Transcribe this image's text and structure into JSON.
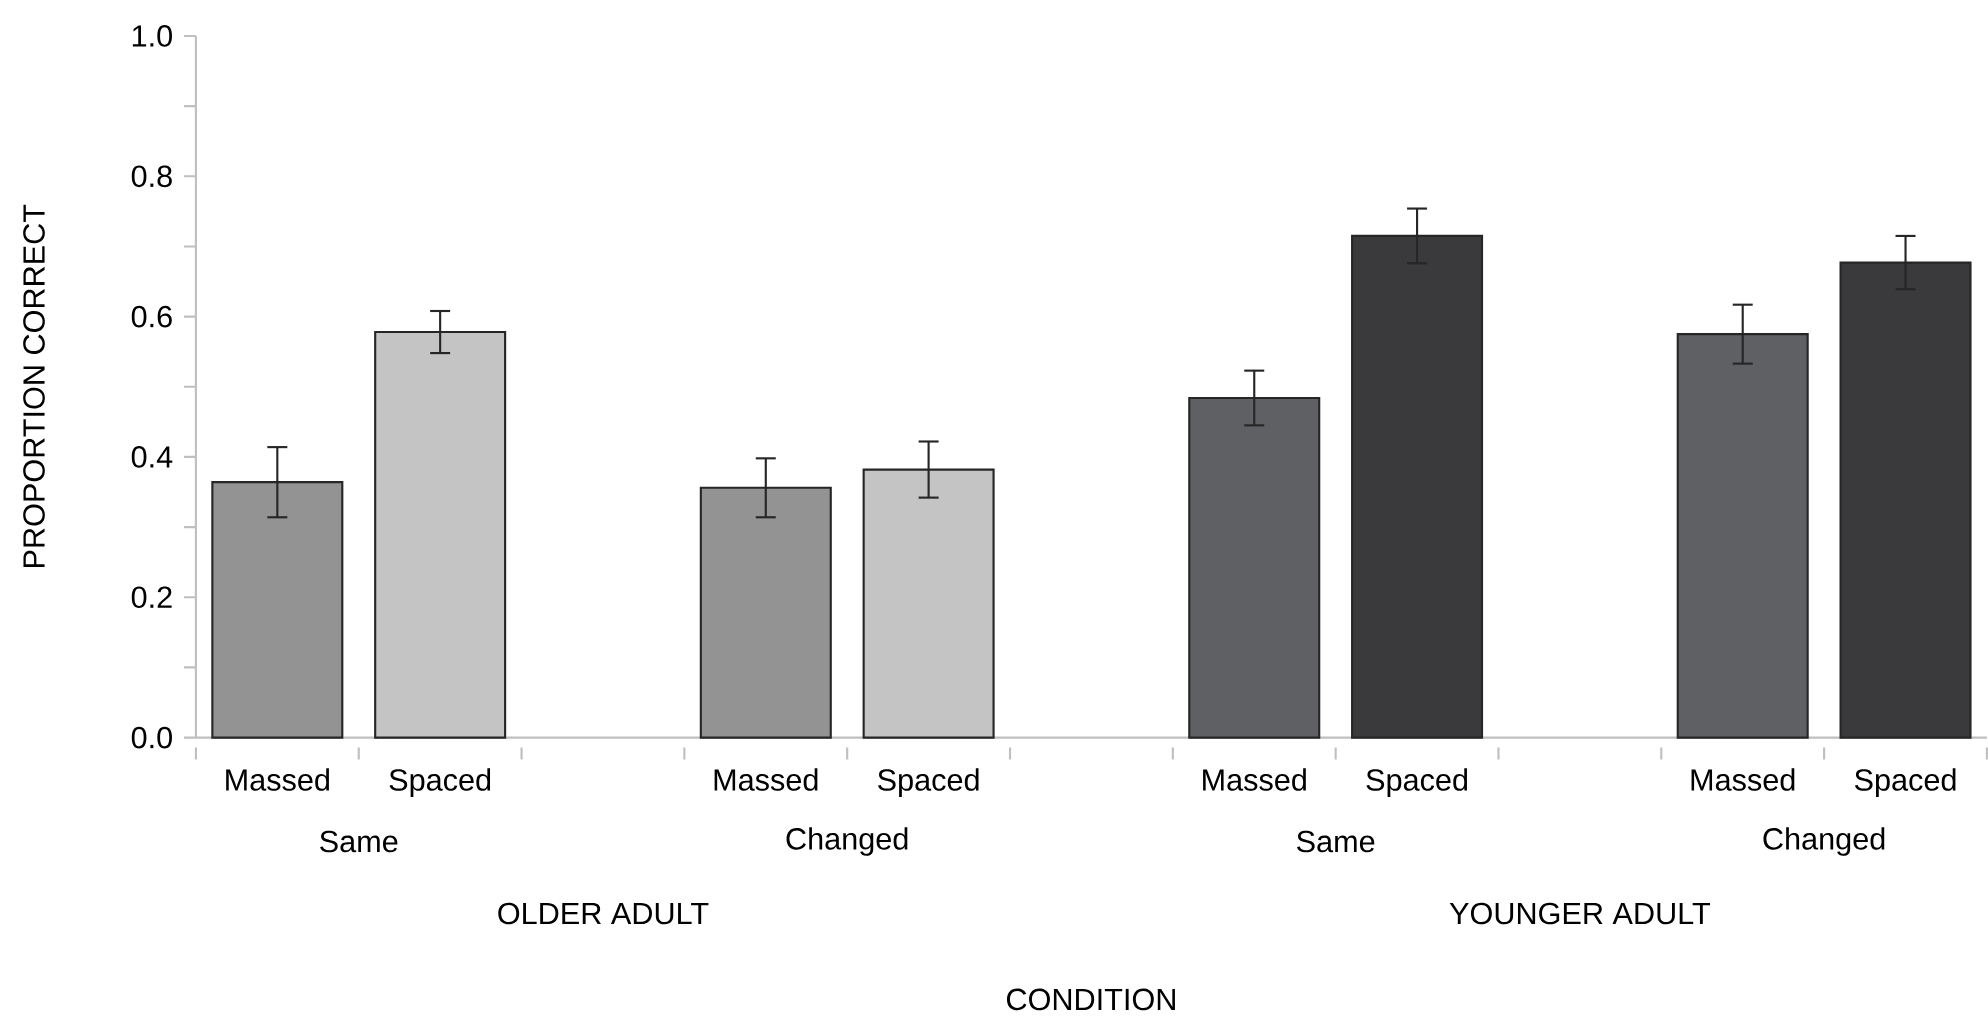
{
  "chart_data": {
    "type": "bar",
    "ylabel": "PROPORTION CORRECT",
    "categories": [
      "Massed",
      "Spaced",
      null,
      "Massed",
      "Spaced",
      null,
      "Massed",
      "Spaced",
      null,
      "Massed",
      "Spaced"
    ],
    "series": [
      {
        "values": [
          0.364,
          null,
          null,
          0.356,
          null,
          null,
          0.484,
          null,
          null,
          0.575,
          null
        ],
        "errors": [
          0.05,
          null,
          null,
          0.042,
          null,
          null,
          0.039,
          null,
          null,
          0.042,
          null
        ],
        "colors": [
          "#939393",
          null,
          null,
          "#939393",
          null,
          null,
          "#5f6064",
          null,
          null,
          "#5f6064",
          null
        ]
      },
      {
        "values": [
          null,
          0.578,
          null,
          null,
          0.382,
          null,
          null,
          0.715,
          null,
          null,
          0.677
        ],
        "errors": [
          null,
          0.03,
          null,
          null,
          0.04,
          null,
          null,
          0.039,
          null,
          null,
          0.038
        ],
        "colors": [
          null,
          "#c4c4c4",
          null,
          null,
          "#c4c4c4",
          null,
          null,
          "#3a3a3c",
          null,
          null,
          "#3a3a3c"
        ]
      }
    ],
    "ylim": [
      0,
      1
    ],
    "yticks": [
      {
        "value": 0,
        "label": "0.0"
      },
      {
        "value": 0.2,
        "label": "0.2"
      },
      {
        "value": 0.4,
        "label": "0.4"
      },
      {
        "value": 0.6,
        "label": "0.6"
      },
      {
        "value": 0.8,
        "label": "0.8"
      },
      {
        "value": 1,
        "label": "1.0"
      }
    ],
    "annotations": [
      "Same",
      "Changed",
      "Same",
      "Changed",
      "OLDER ADULT",
      "YOUNGER ADULT",
      "CONDITION"
    ],
    "tick_labels": "xy"
  }
}
